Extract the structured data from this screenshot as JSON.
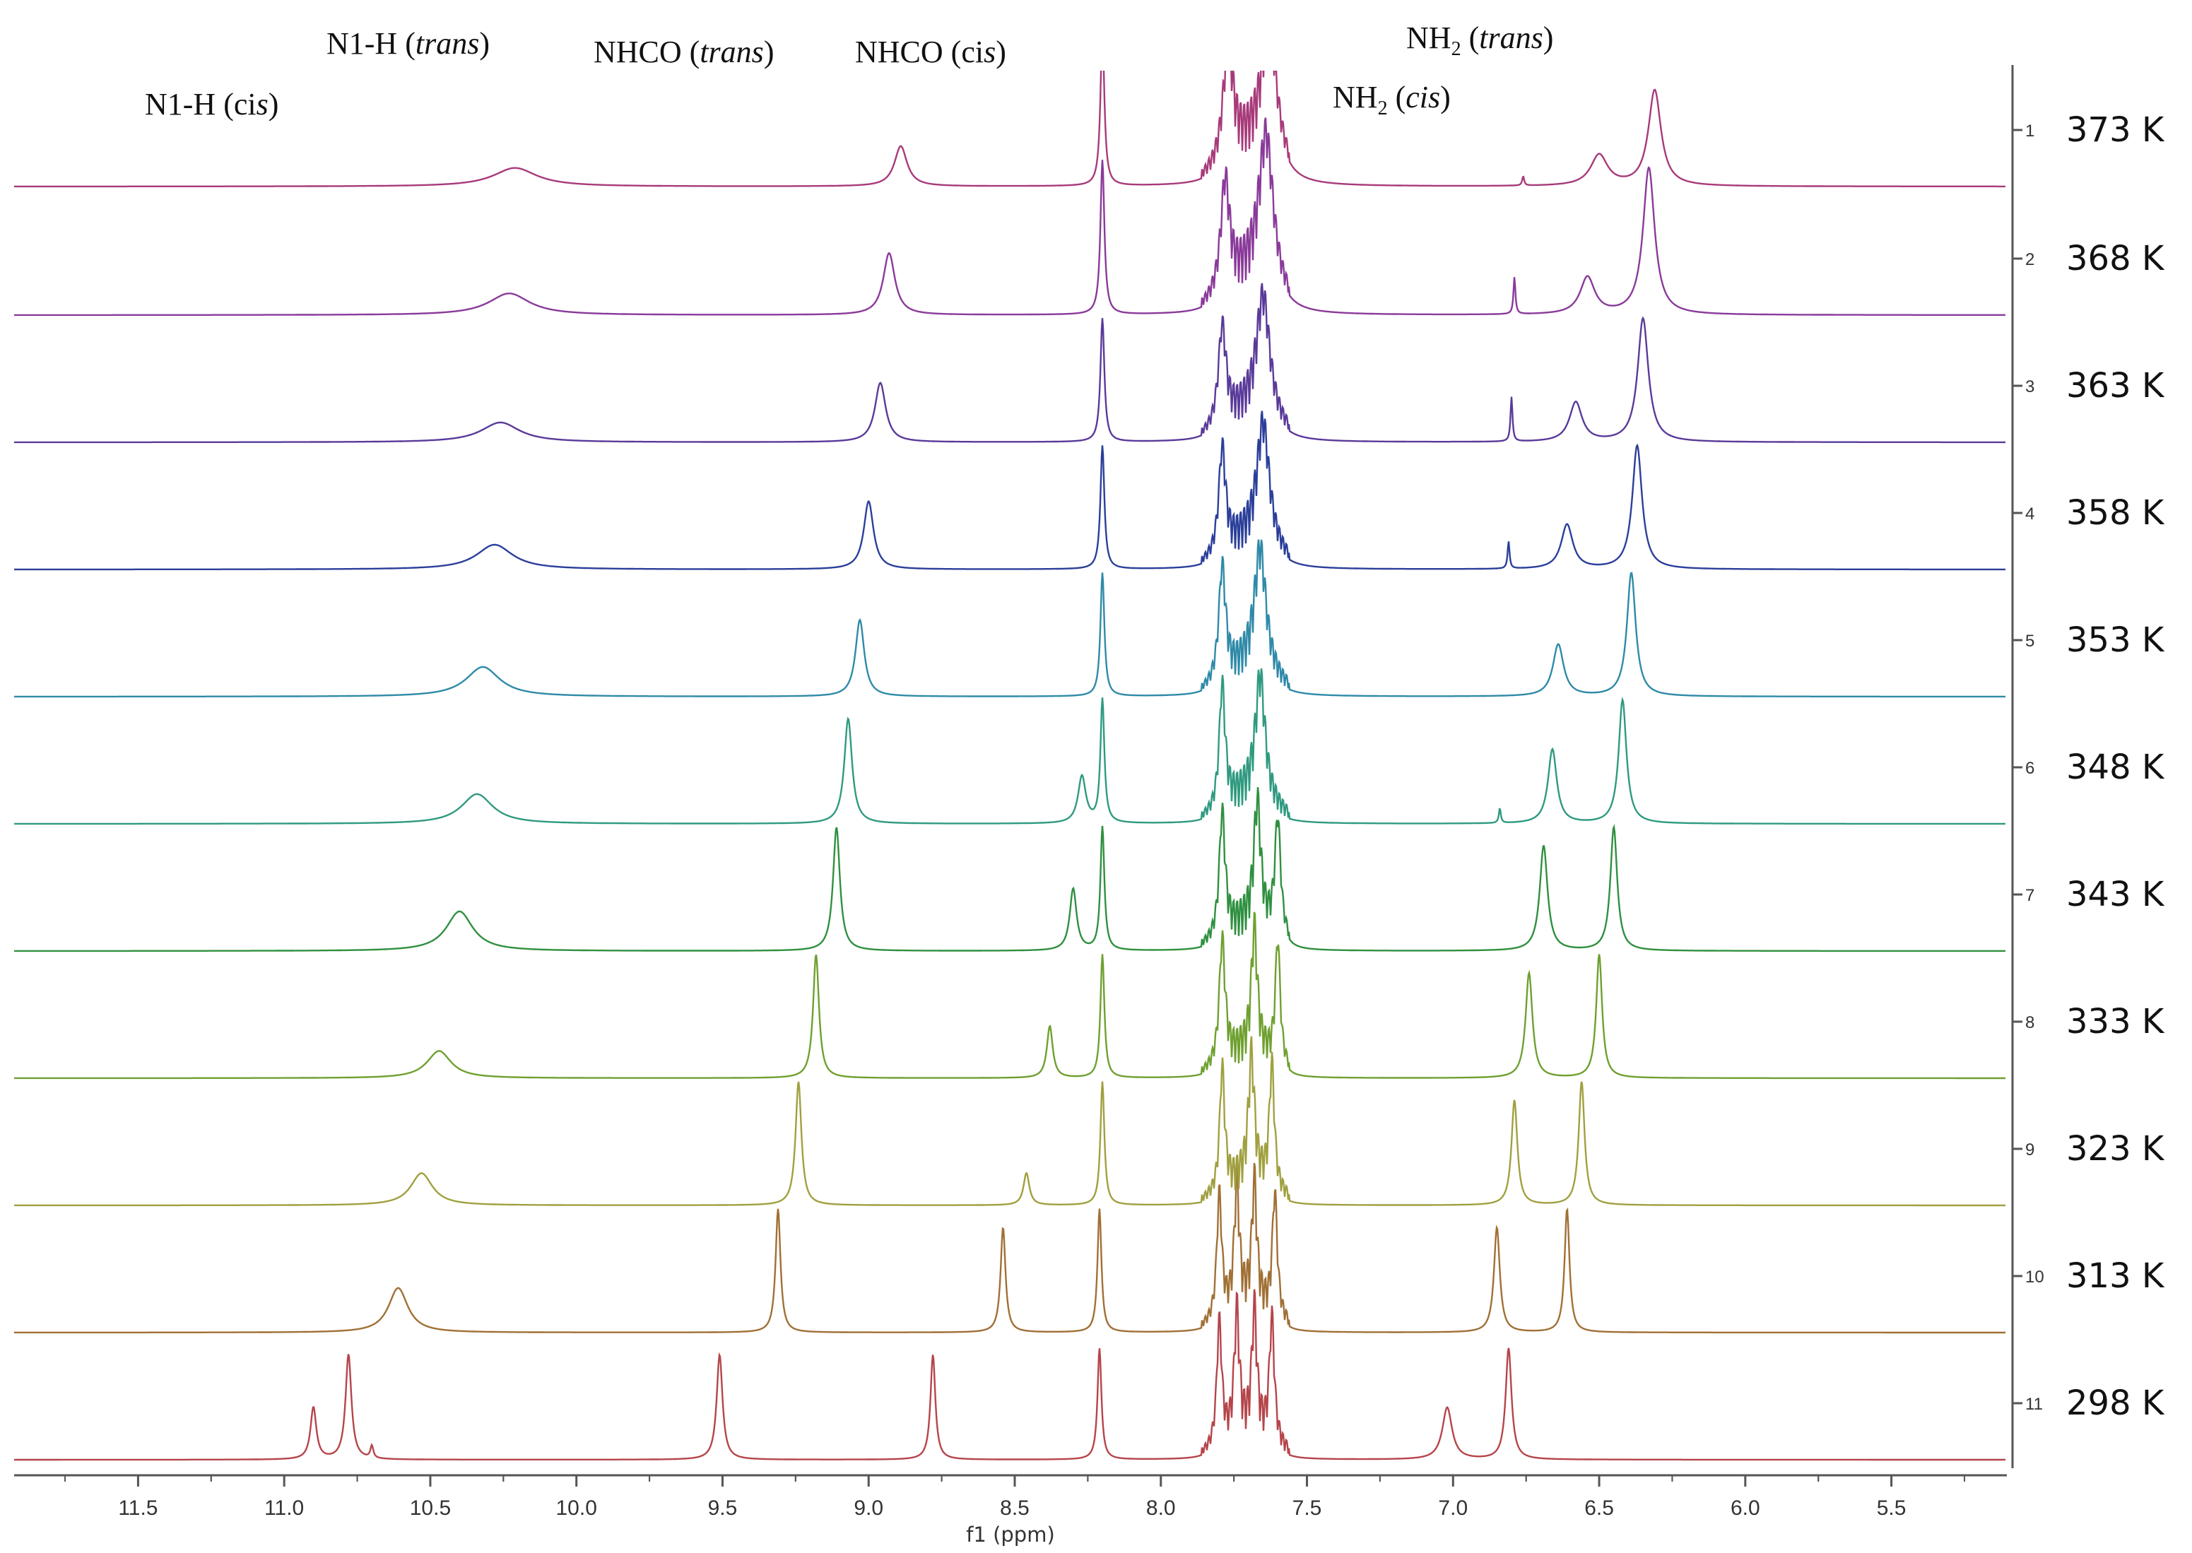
{
  "chart_data": {
    "type": "line",
    "title": "",
    "xlabel": "f1 (ppm)",
    "ylabel": "",
    "xlim": [
      11.9,
      5.1
    ],
    "x_reversed": true,
    "grid": false,
    "x_ticks": [
      "11.5",
      "11.0",
      "10.5",
      "10.0",
      "9.5",
      "9.0",
      "8.5",
      "8.0",
      "7.5",
      "7.0",
      "6.5",
      "6.0",
      "5.5"
    ],
    "x_tick_values": [
      11.5,
      11.0,
      10.5,
      10.0,
      9.5,
      9.0,
      8.5,
      8.0,
      7.5,
      7.0,
      6.5,
      6.0,
      5.5
    ],
    "right_axis_ticks": [
      "11",
      "10",
      "9",
      "8",
      "7",
      "6",
      "5",
      "4",
      "3",
      "2",
      "1"
    ],
    "annotations": [
      {
        "text": "N1-H (cis)",
        "base": "N1-H (ci",
        "italic": "s",
        "after": ")",
        "x_ppm": 10.9
      },
      {
        "text": "N1-H (trans)",
        "base": "N1-H (",
        "italic": "trans",
        "after": ")",
        "x_ppm": 10.78
      },
      {
        "text": "NHCO (trans)",
        "base": "NHCO (",
        "italic": "trans",
        "after": ")",
        "x_ppm": 9.51
      },
      {
        "text": "NHCO (cis)",
        "base": "NHCO (ci",
        "italic": "s",
        "after": ")",
        "x_ppm": 8.78
      },
      {
        "text": "NH2 (cis)",
        "base": "NH",
        "sub": "2",
        "paren": " (",
        "italic": "cis",
        "after": ")",
        "x_ppm": 7.02
      },
      {
        "text": "NH2 (trans)",
        "base": "NH",
        "sub": "2",
        "paren": " (",
        "italic": "trans",
        "after": ")",
        "x_ppm": 6.81
      }
    ],
    "aromatic_region_ppm": [
      7.6,
      7.82
    ],
    "series": [
      {
        "index": 11,
        "name": "298 K",
        "color": "#b5454a",
        "peaks": [
          {
            "ppm": 10.9,
            "height": 0.42,
            "width": 0.012
          },
          {
            "ppm": 10.78,
            "height": 0.85,
            "width": 0.012
          },
          {
            "ppm": 10.7,
            "height": 0.1,
            "width": 0.006
          },
          {
            "ppm": 9.51,
            "height": 0.85,
            "width": 0.012
          },
          {
            "ppm": 8.78,
            "height": 0.85,
            "width": 0.01
          },
          {
            "ppm": 8.21,
            "height": 0.9,
            "width": 0.008
          },
          {
            "ppm": 7.8,
            "height": 1.0,
            "width": 0.01
          },
          {
            "ppm": 7.74,
            "height": 1.0,
            "width": 0.01
          },
          {
            "ppm": 7.68,
            "height": 1.0,
            "width": 0.01
          },
          {
            "ppm": 7.62,
            "height": 1.0,
            "width": 0.01
          },
          {
            "ppm": 7.02,
            "height": 0.42,
            "width": 0.02
          },
          {
            "ppm": 6.81,
            "height": 0.9,
            "width": 0.012
          }
        ]
      },
      {
        "index": 10,
        "name": "313 K",
        "color": "#a07035",
        "peaks": [
          {
            "ppm": 10.61,
            "height": 0.36,
            "width": 0.04
          },
          {
            "ppm": 9.31,
            "height": 1.0,
            "width": 0.01
          },
          {
            "ppm": 8.54,
            "height": 0.85,
            "width": 0.01
          },
          {
            "ppm": 8.21,
            "height": 1.0,
            "width": 0.008
          },
          {
            "ppm": 7.8,
            "height": 1.0,
            "width": 0.01
          },
          {
            "ppm": 7.74,
            "height": 1.0,
            "width": 0.01
          },
          {
            "ppm": 7.68,
            "height": 1.0,
            "width": 0.01
          },
          {
            "ppm": 7.61,
            "height": 1.0,
            "width": 0.01
          },
          {
            "ppm": 6.85,
            "height": 0.85,
            "width": 0.012
          },
          {
            "ppm": 6.61,
            "height": 1.0,
            "width": 0.01
          }
        ]
      },
      {
        "index": 9,
        "name": "323 K",
        "color": "#a0a040",
        "peaks": [
          {
            "ppm": 10.53,
            "height": 0.26,
            "width": 0.045
          },
          {
            "ppm": 9.24,
            "height": 1.0,
            "width": 0.012
          },
          {
            "ppm": 8.46,
            "height": 0.26,
            "width": 0.012
          },
          {
            "ppm": 8.2,
            "height": 1.0,
            "width": 0.008
          },
          {
            "ppm": 7.79,
            "height": 1.0,
            "width": 0.01
          },
          {
            "ppm": 7.69,
            "height": 1.0,
            "width": 0.012
          },
          {
            "ppm": 7.62,
            "height": 1.0,
            "width": 0.01
          },
          {
            "ppm": 6.79,
            "height": 0.85,
            "width": 0.012
          },
          {
            "ppm": 6.56,
            "height": 1.0,
            "width": 0.012
          }
        ]
      },
      {
        "index": 8,
        "name": "333 K",
        "color": "#6fa030",
        "peaks": [
          {
            "ppm": 10.47,
            "height": 0.22,
            "width": 0.05
          },
          {
            "ppm": 9.18,
            "height": 1.0,
            "width": 0.012
          },
          {
            "ppm": 8.38,
            "height": 0.42,
            "width": 0.012
          },
          {
            "ppm": 8.2,
            "height": 1.0,
            "width": 0.008
          },
          {
            "ppm": 7.79,
            "height": 1.0,
            "width": 0.012
          },
          {
            "ppm": 7.68,
            "height": 1.0,
            "width": 0.012
          },
          {
            "ppm": 7.6,
            "height": 1.0,
            "width": 0.01
          },
          {
            "ppm": 6.74,
            "height": 0.85,
            "width": 0.014
          },
          {
            "ppm": 6.5,
            "height": 1.0,
            "width": 0.012
          }
        ]
      },
      {
        "index": 7,
        "name": "343 K",
        "color": "#2f9040",
        "peaks": [
          {
            "ppm": 10.4,
            "height": 0.32,
            "width": 0.055
          },
          {
            "ppm": 9.11,
            "height": 1.0,
            "width": 0.014
          },
          {
            "ppm": 8.3,
            "height": 0.5,
            "width": 0.014
          },
          {
            "ppm": 8.2,
            "height": 1.0,
            "width": 0.008
          },
          {
            "ppm": 7.79,
            "height": 1.0,
            "width": 0.012
          },
          {
            "ppm": 7.67,
            "height": 1.0,
            "width": 0.014
          },
          {
            "ppm": 7.6,
            "height": 0.95,
            "width": 0.012
          },
          {
            "ppm": 6.69,
            "height": 0.85,
            "width": 0.016
          },
          {
            "ppm": 6.45,
            "height": 1.0,
            "width": 0.014
          }
        ]
      },
      {
        "index": 6,
        "name": "348 K",
        "color": "#2f9a80",
        "peaks": [
          {
            "ppm": 10.34,
            "height": 0.24,
            "width": 0.065
          },
          {
            "ppm": 9.07,
            "height": 0.85,
            "width": 0.016
          },
          {
            "ppm": 8.27,
            "height": 0.38,
            "width": 0.016
          },
          {
            "ppm": 8.2,
            "height": 1.0,
            "width": 0.008
          },
          {
            "ppm": 7.79,
            "height": 1.0,
            "width": 0.012
          },
          {
            "ppm": 7.66,
            "height": 1.0,
            "width": 0.02
          },
          {
            "ppm": 6.84,
            "height": 0.12,
            "width": 0.004
          },
          {
            "ppm": 6.66,
            "height": 0.6,
            "width": 0.018
          },
          {
            "ppm": 6.42,
            "height": 1.0,
            "width": 0.016
          }
        ]
      },
      {
        "index": 5,
        "name": "353 K",
        "color": "#2f8aa8",
        "peaks": [
          {
            "ppm": 10.32,
            "height": 0.24,
            "width": 0.07
          },
          {
            "ppm": 9.03,
            "height": 0.62,
            "width": 0.018
          },
          {
            "ppm": 8.2,
            "height": 1.0,
            "width": 0.008
          },
          {
            "ppm": 7.79,
            "height": 0.92,
            "width": 0.014
          },
          {
            "ppm": 7.66,
            "height": 1.0,
            "width": 0.024
          },
          {
            "ppm": 6.64,
            "height": 0.42,
            "width": 0.022
          },
          {
            "ppm": 6.39,
            "height": 1.0,
            "width": 0.018
          }
        ]
      },
      {
        "index": 4,
        "name": "358 K",
        "color": "#2b3f9a",
        "peaks": [
          {
            "ppm": 10.28,
            "height": 0.2,
            "width": 0.075
          },
          {
            "ppm": 9.0,
            "height": 0.55,
            "width": 0.02
          },
          {
            "ppm": 8.2,
            "height": 1.0,
            "width": 0.008
          },
          {
            "ppm": 7.79,
            "height": 0.85,
            "width": 0.014
          },
          {
            "ppm": 7.65,
            "height": 1.0,
            "width": 0.026
          },
          {
            "ppm": 6.81,
            "height": 0.22,
            "width": 0.004
          },
          {
            "ppm": 6.61,
            "height": 0.36,
            "width": 0.024
          },
          {
            "ppm": 6.37,
            "height": 1.0,
            "width": 0.02
          }
        ]
      },
      {
        "index": 3,
        "name": "363 K",
        "color": "#5a3a9a",
        "peaks": [
          {
            "ppm": 10.26,
            "height": 0.16,
            "width": 0.08
          },
          {
            "ppm": 8.96,
            "height": 0.48,
            "width": 0.022
          },
          {
            "ppm": 8.2,
            "height": 1.0,
            "width": 0.008
          },
          {
            "ppm": 7.79,
            "height": 0.8,
            "width": 0.016
          },
          {
            "ppm": 7.65,
            "height": 1.0,
            "width": 0.028
          },
          {
            "ppm": 6.8,
            "height": 0.36,
            "width": 0.004
          },
          {
            "ppm": 6.58,
            "height": 0.32,
            "width": 0.026
          },
          {
            "ppm": 6.35,
            "height": 1.0,
            "width": 0.022
          }
        ]
      },
      {
        "index": 2,
        "name": "368 K",
        "color": "#8a3a9a",
        "peaks": [
          {
            "ppm": 10.23,
            "height": 0.14,
            "width": 0.085
          },
          {
            "ppm": 8.93,
            "height": 0.4,
            "width": 0.024
          },
          {
            "ppm": 8.2,
            "height": 1.0,
            "width": 0.008
          },
          {
            "ppm": 7.78,
            "height": 0.72,
            "width": 0.018
          },
          {
            "ppm": 7.64,
            "height": 1.0,
            "width": 0.03
          },
          {
            "ppm": 6.79,
            "height": 0.24,
            "width": 0.004
          },
          {
            "ppm": 6.54,
            "height": 0.24,
            "width": 0.03
          },
          {
            "ppm": 6.33,
            "height": 0.95,
            "width": 0.024
          }
        ]
      },
      {
        "index": 1,
        "name": "373 K",
        "color": "#a83a7a",
        "peaks": [
          {
            "ppm": 10.21,
            "height": 0.12,
            "width": 0.09
          },
          {
            "ppm": 8.89,
            "height": 0.26,
            "width": 0.026
          },
          {
            "ppm": 8.2,
            "height": 1.0,
            "width": 0.008
          },
          {
            "ppm": 7.77,
            "height": 0.75,
            "width": 0.02
          },
          {
            "ppm": 7.63,
            "height": 0.9,
            "width": 0.032
          },
          {
            "ppm": 6.76,
            "height": 0.06,
            "width": 0.004
          },
          {
            "ppm": 6.5,
            "height": 0.2,
            "width": 0.035
          },
          {
            "ppm": 6.31,
            "height": 0.62,
            "width": 0.026
          }
        ]
      }
    ]
  }
}
